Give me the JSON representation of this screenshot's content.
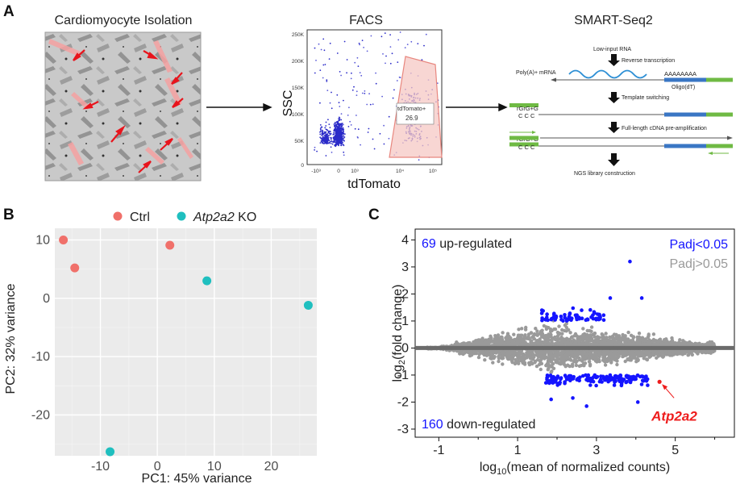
{
  "panels": {
    "a": {
      "letter": "A",
      "isolation_title": "Cardiomyocyte Isolation",
      "facs_title": "FACS",
      "facs": {
        "ylabel": "SSC",
        "xlabel": "tdTomato",
        "y_ticks": [
          "250K",
          "200K",
          "150K",
          "100K",
          "50K",
          "0"
        ],
        "x_ticks": [
          "-10³",
          "0",
          "10³",
          "10⁴",
          "10⁵"
        ],
        "gate_label": "tdTomato+",
        "gate_value": "26.9"
      },
      "seq_title": "SMART-Seq2",
      "seq_steps": {
        "low_input": "Low-input RNA",
        "reverse_transcription": "Reverse transcription",
        "polya_mrna": "Poly(A)+ mRNA",
        "polya_tail": "AAAAAAAA",
        "oligo_dt": "Oligo(dT)",
        "template_switching": "Template switching",
        "rgrg_1": "rGrG+G",
        "ccc_1": "C C C",
        "preamp": "Full-length cDNA pre-amplification",
        "rgrg_2": "rGrG+G",
        "ccc_2": "C C C",
        "ngs": "NGS library construction"
      },
      "colors": {
        "arrow_red": "#e8141c",
        "gate_fill": "#f6c8c4",
        "mrna": "#2d8fd5",
        "primer": "#6fba44",
        "oligo": "#3a76c4"
      }
    },
    "b": {
      "letter": "B",
      "chart_data": {
        "type": "scatter",
        "xlabel": "PC1: 45% variance",
        "ylabel": "PC2: 32% variance",
        "xlim": [
          -18,
          28
        ],
        "ylim": [
          -27,
          12
        ],
        "x_ticks": [
          -10,
          0,
          10,
          20
        ],
        "y_ticks": [
          10,
          0,
          -10,
          -20
        ],
        "legend": [
          {
            "name": "Ctrl",
            "color": "#f0706a"
          },
          {
            "name": "Atp2a2",
            "suffix": " KO",
            "color": "#1fbfbf"
          }
        ],
        "series": [
          {
            "name": "Ctrl",
            "color": "#f0706a",
            "points": [
              [
                -16.5,
                10
              ],
              [
                -14.5,
                5.2
              ],
              [
                2.2,
                9.1
              ]
            ]
          },
          {
            "name": "Atp2a2 KO",
            "color": "#1fbfbf",
            "points": [
              [
                8.7,
                3
              ],
              [
                26.5,
                -1.2
              ],
              [
                -8.3,
                -26.3
              ]
            ]
          }
        ]
      }
    },
    "c": {
      "letter": "C",
      "chart_data": {
        "type": "scatter",
        "xlabel_pre": "log",
        "xlabel_sub": "10",
        "xlabel_post": "(mean of normalized counts)",
        "ylabel_pre": "log",
        "ylabel_sub": "2",
        "ylabel_post": "(fold change)",
        "xlim": [
          -1.6,
          6.5
        ],
        "ylim": [
          -3.3,
          4.4
        ],
        "x_ticks": [
          -1,
          1,
          3,
          5
        ],
        "y_ticks": [
          4,
          3,
          2,
          1,
          0,
          -1,
          -2,
          -3
        ],
        "up_count": "69",
        "up_label": " up-regulated",
        "down_count": "160",
        "down_label": " down-regulated",
        "legend_sig": "Padj<0.05",
        "legend_ns": "Padj>0.05",
        "highlight_gene": "Atp2a2",
        "highlight_point": [
          4.6,
          -1.25
        ],
        "outlier_points": [
          [
            3.85,
            3.2
          ],
          [
            4.15,
            1.85
          ],
          [
            3.35,
            1.85
          ],
          [
            4.05,
            -2.0
          ],
          [
            2.75,
            -2.15
          ],
          [
            2.4,
            -1.85
          ],
          [
            1.85,
            -1.9
          ]
        ],
        "colors": {
          "sig": "#1414ff",
          "ns": "#9a9a9a",
          "zero_line": "#6b6b6b",
          "highlight": "#ee1c1c"
        }
      }
    }
  }
}
